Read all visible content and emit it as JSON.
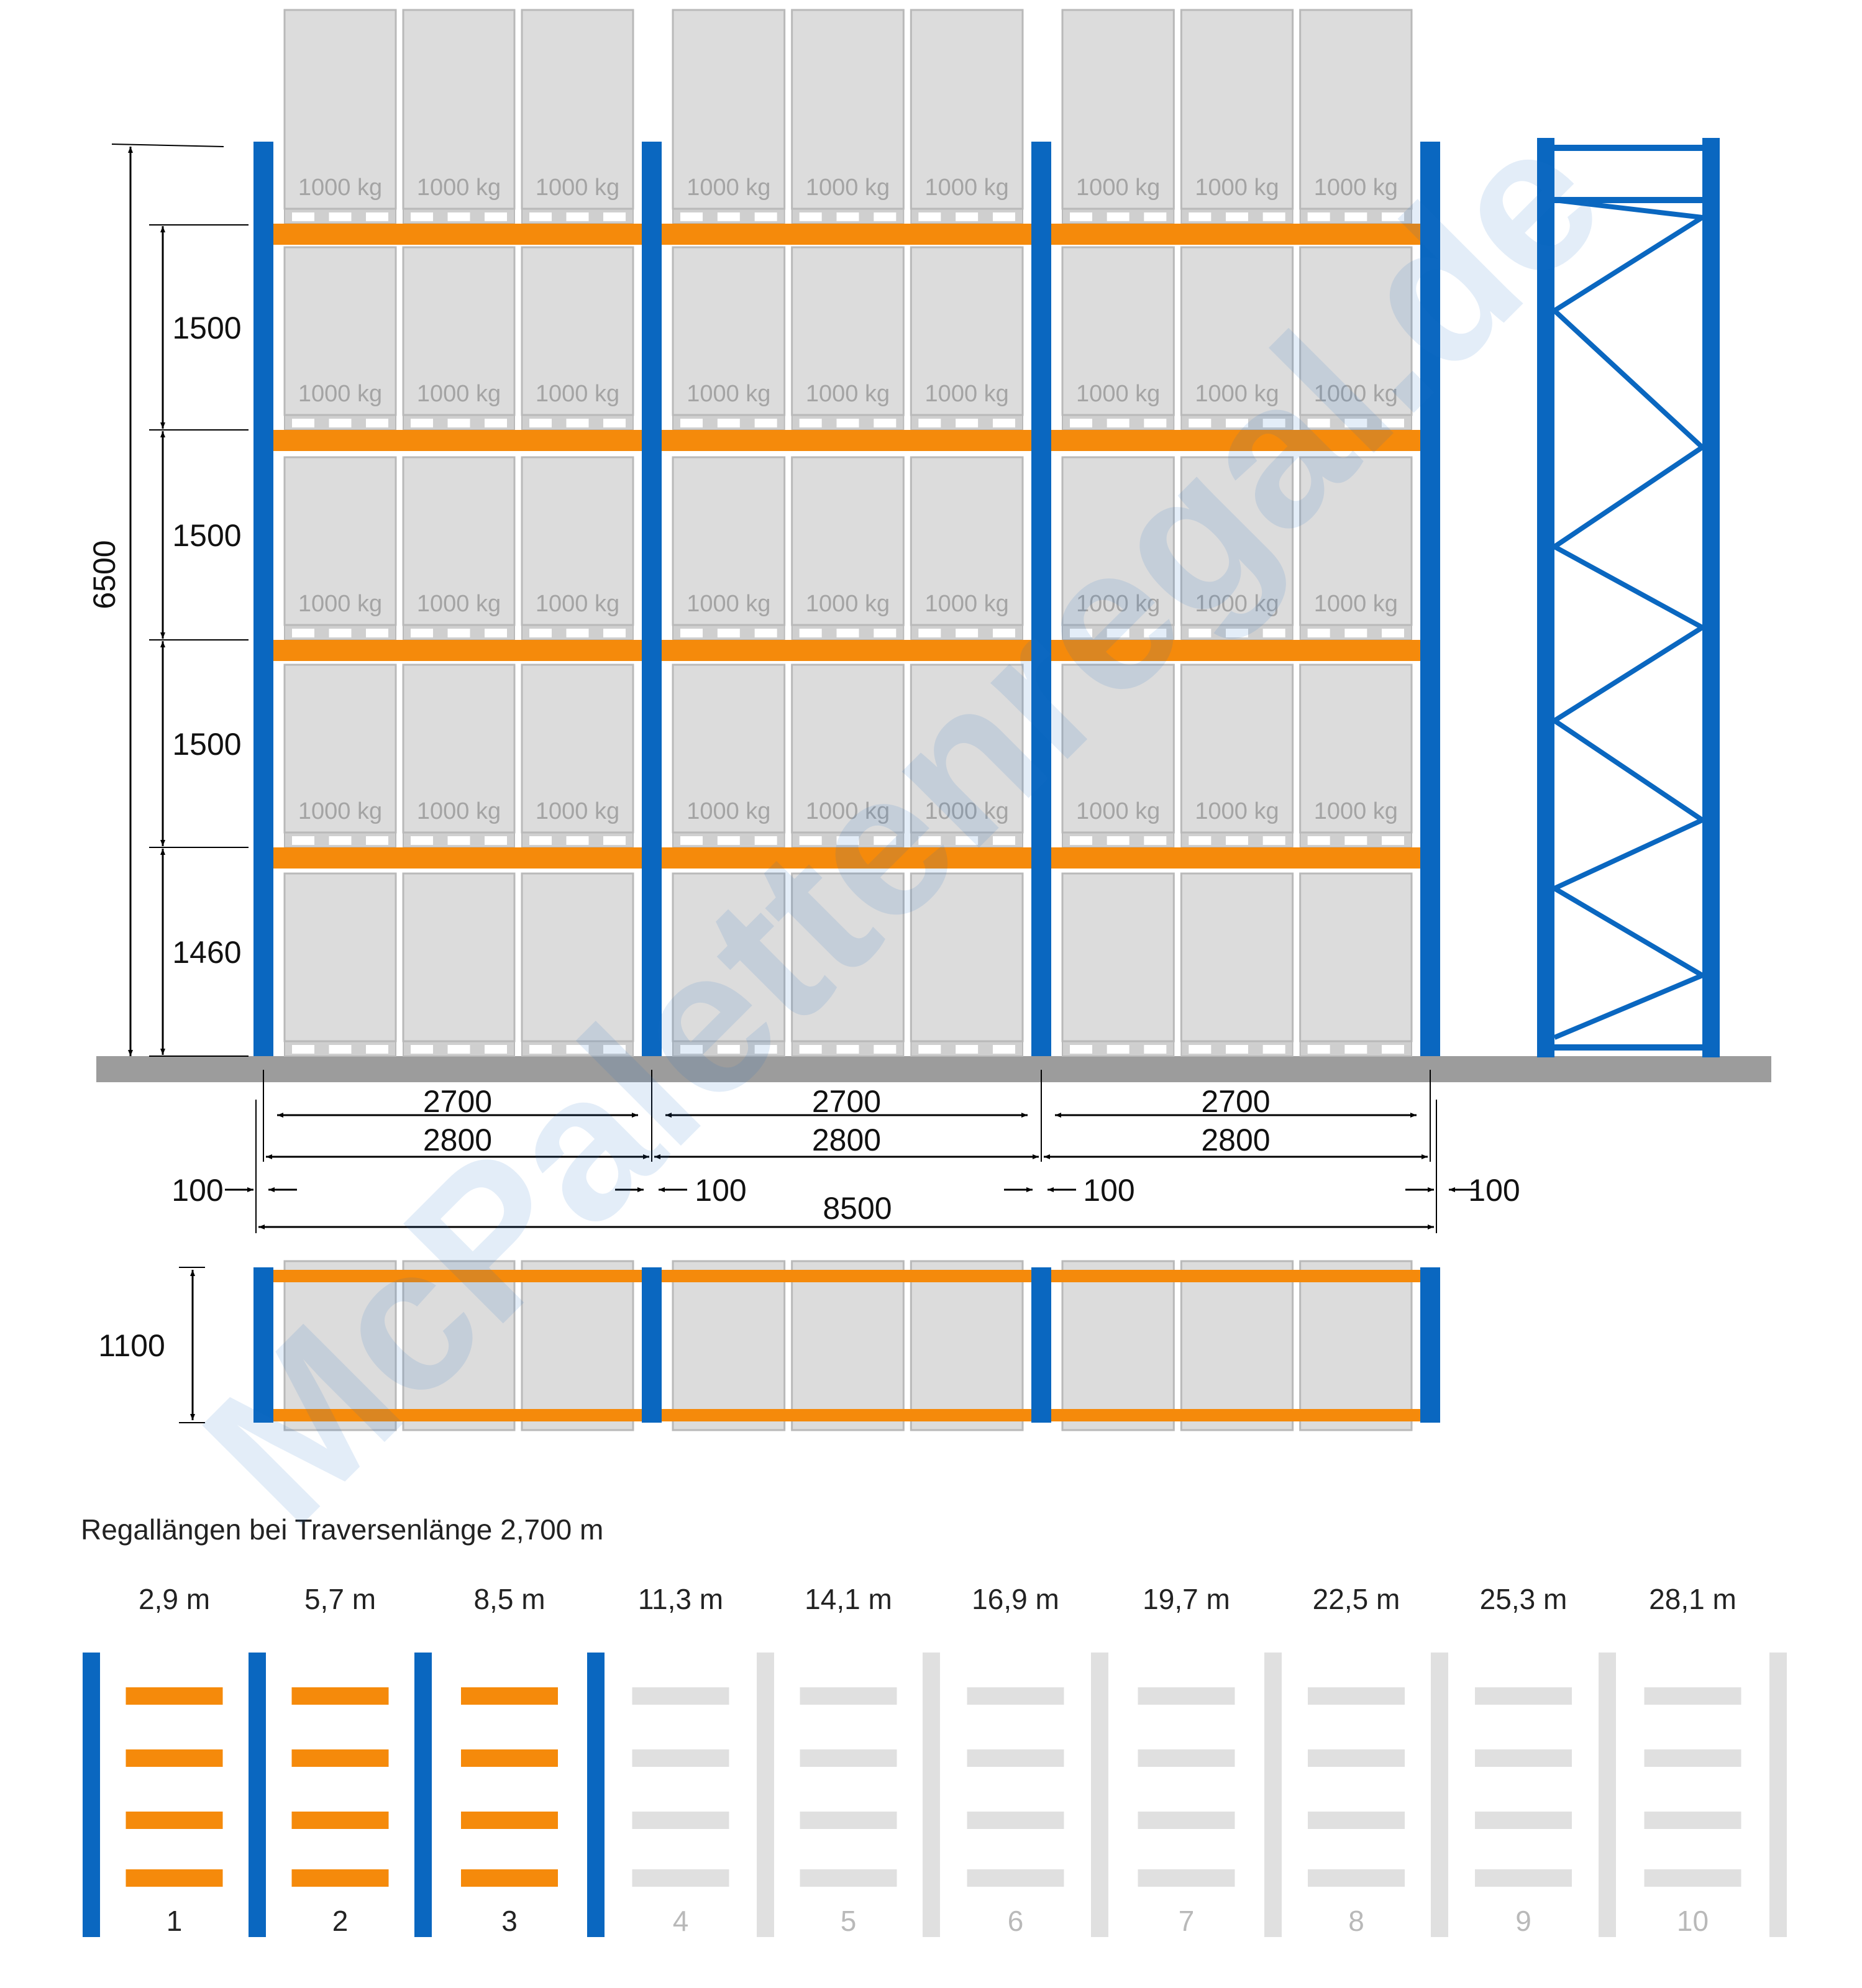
{
  "colors": {
    "upright": "#0a67c0",
    "beam": "#f58a0b",
    "pallet_box": "#dcdcdc",
    "pallet_stroke": "#b9b9b9",
    "floor": "#9c9c9c",
    "inactive": "#e0e0e0",
    "dim_line": "#000000"
  },
  "watermark": "McPalettenregal.de",
  "elevation": {
    "load_label": "1000 kg",
    "total_height": "6500",
    "level_heights": [
      "1500",
      "1500",
      "1500",
      "1460"
    ],
    "bays": 3,
    "pallets_per_bay": 3,
    "loaded_rows": 4
  },
  "width_dims": {
    "bays": [
      {
        "clear": "2700",
        "pitch": "2800"
      },
      {
        "clear": "2700",
        "pitch": "2800"
      },
      {
        "clear": "2700",
        "pitch": "2800"
      }
    ],
    "gaps": [
      "100",
      "100",
      "100",
      "100"
    ],
    "total": "8500"
  },
  "plan": {
    "depth": "1100"
  },
  "lengths": {
    "caption": "Regallängen bei Traversenlänge 2,700 m",
    "items": [
      {
        "index": "1",
        "length": "2,9 m",
        "active": true
      },
      {
        "index": "2",
        "length": "5,7 m",
        "active": true
      },
      {
        "index": "3",
        "length": "8,5 m",
        "active": true
      },
      {
        "index": "4",
        "length": "11,3 m",
        "active": false
      },
      {
        "index": "5",
        "length": "14,1 m",
        "active": false
      },
      {
        "index": "6",
        "length": "16,9 m",
        "active": false
      },
      {
        "index": "7",
        "length": "19,7 m",
        "active": false
      },
      {
        "index": "8",
        "length": "22,5 m",
        "active": false
      },
      {
        "index": "9",
        "length": "25,3 m",
        "active": false
      },
      {
        "index": "10",
        "length": "28,1 m",
        "active": false
      }
    ]
  }
}
